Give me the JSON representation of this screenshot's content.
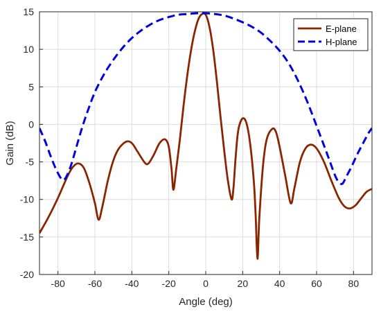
{
  "chart_data": {
    "type": "line",
    "title": "",
    "xlabel": "Angle (deg)",
    "ylabel": "Gain (dB)",
    "xlim": [
      -90,
      90
    ],
    "ylim": [
      -20,
      15
    ],
    "xticks": [
      -80,
      -60,
      -40,
      -20,
      0,
      20,
      40,
      60,
      80
    ],
    "yticks": [
      -20,
      -15,
      -10,
      -5,
      0,
      5,
      10,
      15
    ],
    "grid": true,
    "legend_position": "top-right",
    "series": [
      {
        "name": "E-plane",
        "color": "#8B2500",
        "style": "solid",
        "points": [
          [
            -90,
            -14.5
          ],
          [
            -85,
            -12.3
          ],
          [
            -80,
            -9.8
          ],
          [
            -75,
            -7.0
          ],
          [
            -72,
            -5.7
          ],
          [
            -69,
            -5.2
          ],
          [
            -66,
            -5.8
          ],
          [
            -63,
            -7.8
          ],
          [
            -60,
            -10.5
          ],
          [
            -58,
            -12.7
          ],
          [
            -56,
            -11.0
          ],
          [
            -53,
            -7.5
          ],
          [
            -50,
            -4.8
          ],
          [
            -47,
            -3.2
          ],
          [
            -43,
            -2.3
          ],
          [
            -40,
            -2.5
          ],
          [
            -37,
            -3.6
          ],
          [
            -33,
            -5.1
          ],
          [
            -31,
            -5.2
          ],
          [
            -28,
            -4.0
          ],
          [
            -25,
            -2.5
          ],
          [
            -22,
            -2.0
          ],
          [
            -20,
            -3.0
          ],
          [
            -18.5,
            -6.0
          ],
          [
            -17.5,
            -8.7
          ],
          [
            -16,
            -6.0
          ],
          [
            -14,
            -2.0
          ],
          [
            -12,
            2.5
          ],
          [
            -10,
            6.5
          ],
          [
            -8,
            9.8
          ],
          [
            -6,
            12.3
          ],
          [
            -4,
            14.0
          ],
          [
            -2,
            14.7
          ],
          [
            0,
            14.6
          ],
          [
            2,
            13.0
          ],
          [
            4,
            10.0
          ],
          [
            6,
            5.8
          ],
          [
            8,
            1.0
          ],
          [
            10,
            -3.5
          ],
          [
            12,
            -7.5
          ],
          [
            14,
            -10.0
          ],
          [
            15,
            -8.5
          ],
          [
            16,
            -5.0
          ],
          [
            17,
            -2.0
          ],
          [
            18,
            -0.3
          ],
          [
            20,
            0.8
          ],
          [
            22,
            0.2
          ],
          [
            24,
            -2.5
          ],
          [
            26,
            -7.5
          ],
          [
            27,
            -12.0
          ],
          [
            28,
            -17.9
          ],
          [
            29,
            -12.5
          ],
          [
            31,
            -5.5
          ],
          [
            33,
            -2.0
          ],
          [
            36,
            -0.6
          ],
          [
            38,
            -1.0
          ],
          [
            40,
            -3.0
          ],
          [
            43,
            -6.8
          ],
          [
            46,
            -10.5
          ],
          [
            48,
            -8.5
          ],
          [
            51,
            -5.0
          ],
          [
            54,
            -3.2
          ],
          [
            57,
            -2.7
          ],
          [
            60,
            -3.2
          ],
          [
            64,
            -5.0
          ],
          [
            68,
            -7.5
          ],
          [
            72,
            -9.8
          ],
          [
            75,
            -10.9
          ],
          [
            78,
            -11.2
          ],
          [
            81,
            -10.8
          ],
          [
            84,
            -9.9
          ],
          [
            87,
            -9.0
          ],
          [
            90,
            -8.6
          ]
        ]
      },
      {
        "name": "H-plane",
        "color": "#0000E0",
        "style": "dashed",
        "points": [
          [
            -90,
            -0.5
          ],
          [
            -87,
            -2.2
          ],
          [
            -84,
            -4.2
          ],
          [
            -81,
            -6.0
          ],
          [
            -78,
            -7.3
          ],
          [
            -76,
            -7.2
          ],
          [
            -73,
            -5.5
          ],
          [
            -70,
            -3.0
          ],
          [
            -67,
            -0.5
          ],
          [
            -64,
            1.7
          ],
          [
            -60,
            4.3
          ],
          [
            -55,
            6.7
          ],
          [
            -50,
            8.6
          ],
          [
            -45,
            10.2
          ],
          [
            -40,
            11.5
          ],
          [
            -35,
            12.5
          ],
          [
            -30,
            13.3
          ],
          [
            -25,
            13.9
          ],
          [
            -20,
            14.3
          ],
          [
            -15,
            14.6
          ],
          [
            -10,
            14.7
          ],
          [
            -5,
            14.8
          ],
          [
            0,
            14.8
          ],
          [
            5,
            14.7
          ],
          [
            10,
            14.5
          ],
          [
            15,
            14.1
          ],
          [
            20,
            13.6
          ],
          [
            25,
            13.0
          ],
          [
            30,
            12.2
          ],
          [
            35,
            11.1
          ],
          [
            40,
            9.8
          ],
          [
            45,
            8.1
          ],
          [
            50,
            5.8
          ],
          [
            55,
            3.0
          ],
          [
            60,
            -0.2
          ],
          [
            64,
            -2.8
          ],
          [
            67,
            -4.8
          ],
          [
            70,
            -6.8
          ],
          [
            72,
            -7.7
          ],
          [
            74,
            -7.9
          ],
          [
            76,
            -7.0
          ],
          [
            79,
            -5.6
          ],
          [
            82,
            -4.0
          ],
          [
            85,
            -2.6
          ],
          [
            88,
            -1.2
          ],
          [
            90,
            -0.5
          ]
        ]
      }
    ]
  }
}
